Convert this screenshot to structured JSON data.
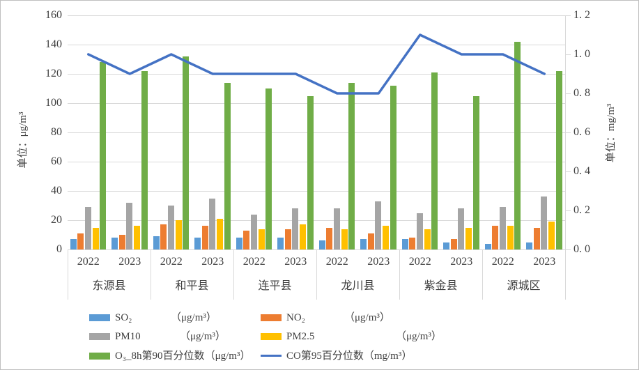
{
  "chart_data": {
    "type": "bar+line combo",
    "counties": [
      "东源县",
      "和平县",
      "连平县",
      "龙川县",
      "紫金县",
      "源城区"
    ],
    "years": [
      "2022",
      "2023"
    ],
    "series": [
      {
        "key": "so2",
        "name": "SO₂",
        "unit": "（μg/m³）",
        "type": "bar",
        "axis": "left",
        "color": "#5B9BD5",
        "values": [
          7,
          8,
          9,
          8,
          8,
          8,
          6,
          7,
          7,
          5,
          4,
          5
        ]
      },
      {
        "key": "no2",
        "name": "NO₂",
        "unit": "（μg/m³）",
        "type": "bar",
        "axis": "left",
        "color": "#ED7D31",
        "values": [
          11,
          10,
          17,
          16,
          13,
          14,
          15,
          11,
          8,
          7,
          16,
          15
        ]
      },
      {
        "key": "pm10",
        "name": "PM10",
        "unit": "（μg/m³）",
        "type": "bar",
        "axis": "left",
        "color": "#A5A5A5",
        "values": [
          29,
          32,
          30,
          35,
          24,
          28,
          28,
          33,
          25,
          28,
          29,
          36
        ]
      },
      {
        "key": "pm25",
        "name": "PM2.5",
        "unit": "（μg/m³）",
        "type": "bar",
        "axis": "left",
        "color": "#FFC000",
        "values": [
          15,
          16,
          20,
          21,
          14,
          17,
          14,
          16,
          14,
          15,
          16,
          19
        ]
      },
      {
        "key": "o3",
        "name": "O₃_8h第90百分位数",
        "unit": "（μg/m³）",
        "type": "bar",
        "axis": "left",
        "color": "#70AD47",
        "values": [
          128,
          122,
          132,
          114,
          110,
          105,
          114,
          112,
          121,
          105,
          142,
          122
        ]
      },
      {
        "key": "co",
        "name": "CO第95百分位数",
        "unit": "（mg/m³）",
        "type": "line",
        "axis": "right",
        "color": "#4472C4",
        "values": [
          1.0,
          0.9,
          1.0,
          0.9,
          0.9,
          0.9,
          0.8,
          0.8,
          1.1,
          1.0,
          1.0,
          0.9
        ]
      }
    ],
    "left_axis": {
      "title": "单位：μg/m³",
      "min": 0,
      "max": 160,
      "step": 20,
      "tick_labels": [
        "0",
        "20",
        "40",
        "60",
        "80",
        "100",
        "120",
        "140",
        "160"
      ]
    },
    "right_axis": {
      "title": "单位：mg/m³",
      "min": 0,
      "max": 1.2,
      "step": 0.2,
      "tick_labels": [
        "0. 0",
        "0. 2",
        "0. 4",
        "0. 6",
        "0. 8",
        "1. 0",
        "1. 2"
      ]
    },
    "gridlines": true,
    "legend_position": "bottom"
  },
  "colors": {
    "gridline": "#D9D9D9",
    "axis_text": "#404040",
    "frame_border": "#BFBFBF",
    "background": "#FFFFFF"
  }
}
